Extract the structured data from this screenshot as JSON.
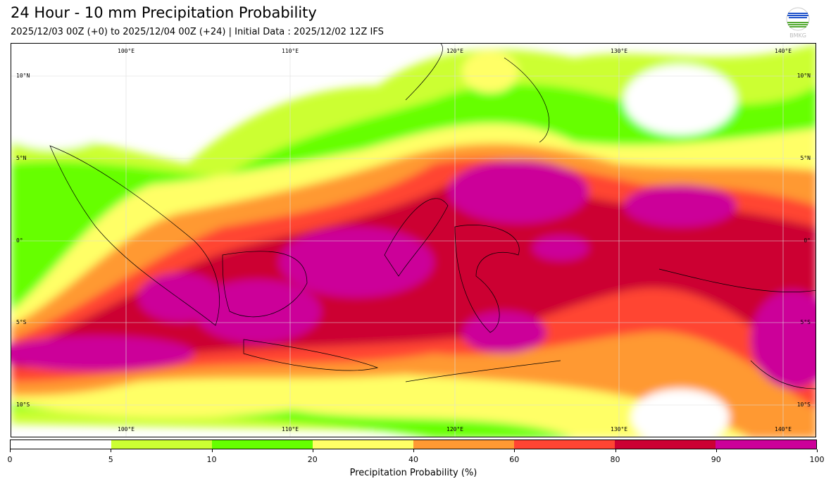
{
  "title": "24 Hour - 10 mm Precipitation Probability",
  "subtitle": "2025/12/03 00Z (+0) to 2025/12/04 00Z (+24) | Initial Data : 2025/12/02 12Z IFS",
  "logo_text": "BMKG",
  "map": {
    "lon_labels": [
      "100°E",
      "110°E",
      "120°E",
      "130°E",
      "140°E"
    ],
    "lat_labels": [
      "10°N",
      "5°N",
      "0°",
      "5°S",
      "10°S"
    ]
  },
  "colorbar": {
    "label": "Precipitation Probability (%)",
    "ticks": [
      "0",
      "5",
      "10",
      "20",
      "40",
      "60",
      "80",
      "90",
      "100"
    ],
    "colors": [
      "#ffffff",
      "#ccff33",
      "#66ff00",
      "#ffff66",
      "#ff9933",
      "#ff4433",
      "#cc0033",
      "#cc0099"
    ]
  }
}
